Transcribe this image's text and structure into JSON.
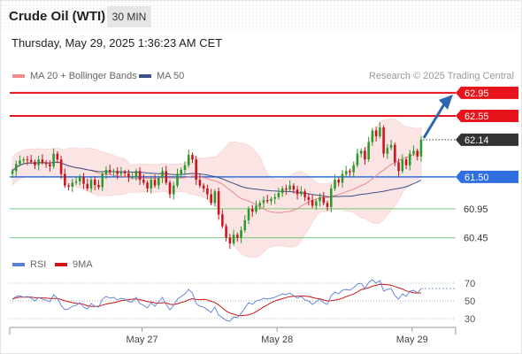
{
  "header": {
    "title": "Crude Oil (WTI)",
    "timeframe": "30 MIN",
    "timestamp": "Thursday, May 29, 2025 1:36:23 AM CET"
  },
  "legend": {
    "ma20": "MA 20 + Bollinger Bands",
    "ma50": "MA 50",
    "credit": "Research © 2025 Trading Central"
  },
  "colors": {
    "resistance": "#e8141c",
    "pivot": "#2f6fe0",
    "support": "#79c879",
    "current": "#333333",
    "bollinger": "#fbe0e0",
    "ma20": "#e88a8a",
    "ma50": "#3d4f86",
    "up_candle": "#2b9a2b",
    "down_candle": "#c8141c",
    "arrow": "#2e66b0",
    "rsi": "#5a7fd6",
    "rsi_ma": "#d01414"
  },
  "chart_data": [
    {
      "type": "candlestick",
      "ylim": [
        60.2,
        63.1
      ],
      "x_labels": [
        "May 27",
        "May 28",
        "May 29"
      ],
      "levels": [
        {
          "value": 62.95,
          "label": "62.95",
          "kind": "resistance"
        },
        {
          "value": 62.55,
          "label": "62.55",
          "kind": "resistance"
        },
        {
          "value": 62.14,
          "label": "62.14",
          "kind": "current"
        },
        {
          "value": 61.5,
          "label": "61.50",
          "kind": "pivot"
        },
        {
          "value": 60.95,
          "label": "60.95",
          "kind": "support"
        },
        {
          "value": 60.45,
          "label": "60.45",
          "kind": "support"
        }
      ],
      "close": [
        61.6,
        61.72,
        61.78,
        61.8,
        61.79,
        61.76,
        61.7,
        61.8,
        61.75,
        61.72,
        61.68,
        61.9,
        61.8,
        61.55,
        61.35,
        61.33,
        61.4,
        61.42,
        61.5,
        61.38,
        61.3,
        61.45,
        61.36,
        61.32,
        61.55,
        61.62,
        61.58,
        61.6,
        61.55,
        61.58,
        61.56,
        61.5,
        61.5,
        61.6,
        61.45,
        61.4,
        61.3,
        61.45,
        61.35,
        61.48,
        61.6,
        61.4,
        61.2,
        61.35,
        61.55,
        61.62,
        61.7,
        61.88,
        61.8,
        61.45,
        61.35,
        61.3,
        61.2,
        61.05,
        61.25,
        60.85,
        60.65,
        60.45,
        60.35,
        60.5,
        60.45,
        60.58,
        60.75,
        60.95,
        60.9,
        61.0,
        61.05,
        61.1,
        61.08,
        61.12,
        61.15,
        61.22,
        61.3,
        61.28,
        61.35,
        61.28,
        61.2,
        61.25,
        61.15,
        61.1,
        61.0,
        61.08,
        61.15,
        61.05,
        60.98,
        61.3,
        61.45,
        61.4,
        61.55,
        61.6,
        61.58,
        61.7,
        61.9,
        61.95,
        61.8,
        62.1,
        62.3,
        62.2,
        62.35,
        61.9,
        62.0,
        62.05,
        61.75,
        61.6,
        61.8,
        61.7,
        61.9,
        61.95,
        61.85,
        62.14
      ]
    },
    {
      "type": "line",
      "title": "RSI",
      "series": [
        {
          "name": "RSI",
          "values": [
            52,
            55,
            56,
            54,
            55,
            53,
            50,
            54,
            52,
            51,
            49,
            57,
            53,
            45,
            40,
            41,
            44,
            45,
            48,
            43,
            41,
            47,
            44,
            43,
            52,
            55,
            53,
            54,
            51,
            53,
            52,
            49,
            49,
            54,
            47,
            45,
            42,
            48,
            44,
            49,
            54,
            46,
            40,
            45,
            52,
            55,
            58,
            63,
            59,
            47,
            44,
            43,
            40,
            37,
            43,
            34,
            31,
            28,
            27,
            32,
            31,
            36,
            42,
            48,
            46,
            50,
            51,
            53,
            52,
            53,
            54,
            56,
            58,
            57,
            59,
            56,
            53,
            55,
            51,
            50,
            46,
            49,
            52,
            48,
            46,
            56,
            60,
            58,
            62,
            63,
            62,
            65,
            69,
            70,
            64,
            71,
            74,
            70,
            73,
            61,
            63,
            64,
            56,
            52,
            58,
            55,
            61,
            62,
            59,
            64
          ]
        },
        {
          "name": "9MA"
        }
      ],
      "ticks": [
        "70",
        "50",
        "30"
      ],
      "ylim": [
        20,
        80
      ]
    }
  ]
}
